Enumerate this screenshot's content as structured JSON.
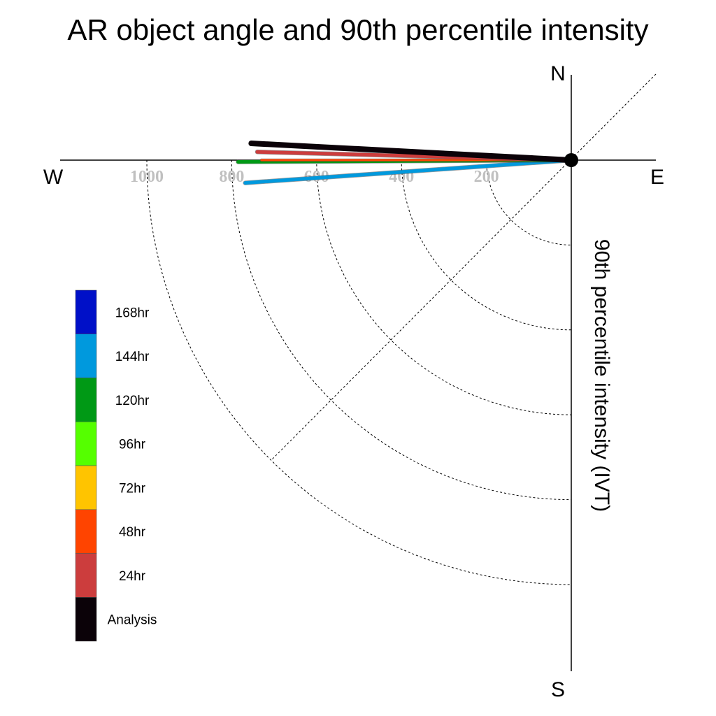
{
  "chart_data": {
    "type": "polar-vector",
    "title": "AR object angle and 90th percentile intensity",
    "radial_label": "90th percentile intensity (IVT)",
    "compass": {
      "north": "N",
      "south": "S",
      "east": "E",
      "west": "W"
    },
    "radial_ticks": [
      200,
      400,
      600,
      800,
      1000
    ],
    "radial_tick_labels": [
      "200",
      "400",
      "600",
      "800",
      "1000"
    ],
    "radial_max": 1200,
    "grid": "dashed quarter arcs and 45-degree diagonal",
    "series": [
      {
        "name": "Analysis",
        "color": "#0b0208",
        "intensity": 755,
        "angle_deg": 183
      },
      {
        "name": "24hr",
        "color": "#cc3d3d",
        "intensity": 740,
        "angle_deg": 181.5
      },
      {
        "name": "48hr",
        "color": "#ff4400",
        "intensity": 730,
        "angle_deg": 180
      },
      {
        "name": "120hr",
        "color": "#009915",
        "intensity": 785,
        "angle_deg": 179.7
      },
      {
        "name": "144hr",
        "color": "#0099dd",
        "intensity": 770,
        "angle_deg": 176
      }
    ],
    "legend": {
      "placement": "left",
      "entries": [
        {
          "name": "168hr",
          "color": "#0010c8"
        },
        {
          "name": "144hr",
          "color": "#0099dd"
        },
        {
          "name": "120hr",
          "color": "#009915"
        },
        {
          "name": "96hr",
          "color": "#55ff00"
        },
        {
          "name": "72hr",
          "color": "#ffc400"
        },
        {
          "name": "48hr",
          "color": "#ff4400"
        },
        {
          "name": "24hr",
          "color": "#cc3d3d"
        },
        {
          "name": "Analysis",
          "color": "#0b0208"
        }
      ]
    }
  }
}
